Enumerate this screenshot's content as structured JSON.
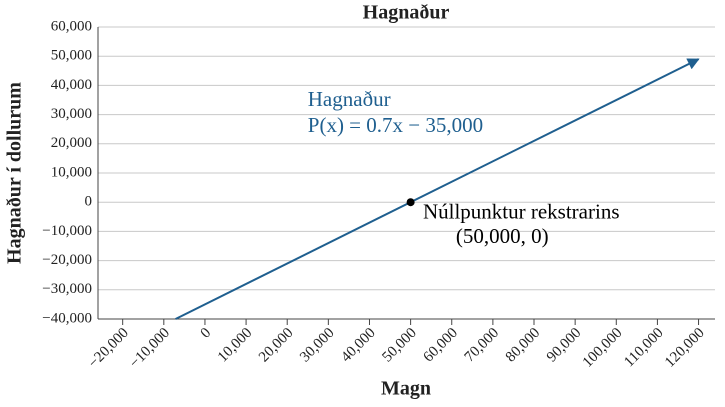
{
  "chart_data": {
    "type": "line",
    "title": "Hagnaður",
    "xlabel": "Magn",
    "ylabel": "Hagnaður í dollurum",
    "series": [
      {
        "color": "#1f5f8f",
        "x": [
          -7142.86,
          120000
        ],
        "values": [
          -40000,
          49000
        ]
      }
    ],
    "point": {
      "x": 50000,
      "y": 0,
      "color": "#000000"
    },
    "annotations": [
      {
        "text": "Hagnaður",
        "x": 25000,
        "y": 33000,
        "color": "#1f5f8f"
      },
      {
        "text": "P(x) = 0.7x − 35,000",
        "x": 25000,
        "y": 24000,
        "color": "#1f5f8f"
      },
      {
        "text": "Núllpunktur rekstrarins",
        "x": 53000,
        "y": -5500,
        "color": "#000000"
      },
      {
        "text": "(50,000, 0)",
        "x": 61000,
        "y": -14000,
        "color": "#000000"
      }
    ],
    "xlim": [
      -26000,
      124000
    ],
    "ylim": [
      -40000,
      60000
    ],
    "xticks": [
      {
        "value": -20000,
        "label": "−20,000"
      },
      {
        "value": -10000,
        "label": "−10,000"
      },
      0,
      {
        "value": 10000,
        "label": "10,000"
      },
      {
        "value": 20000,
        "label": "20,000"
      },
      {
        "value": 30000,
        "label": "30,000"
      },
      {
        "value": 40000,
        "label": "40,000"
      },
      {
        "value": 50000,
        "label": "50,000"
      },
      {
        "value": 60000,
        "label": "60,000"
      },
      {
        "value": 70000,
        "label": "70,000"
      },
      {
        "value": 80000,
        "label": "80,000"
      },
      {
        "value": 90000,
        "label": "90,000"
      },
      {
        "value": 100000,
        "label": "100,000"
      },
      {
        "value": 110000,
        "label": "110,000"
      },
      {
        "value": 120000,
        "label": "120,000"
      }
    ],
    "yticks": [
      {
        "value": -40000,
        "label": "−40,000"
      },
      {
        "value": -30000,
        "label": "−30,000"
      },
      {
        "value": -20000,
        "label": "−20,000"
      },
      {
        "value": -10000,
        "label": "−10,000"
      },
      0,
      {
        "value": 10000,
        "label": "10,000"
      },
      {
        "value": 20000,
        "label": "20,000"
      },
      {
        "value": 30000,
        "label": "30,000"
      },
      {
        "value": 40000,
        "label": "40,000"
      },
      {
        "value": 50000,
        "label": "50,000"
      },
      {
        "value": 60000,
        "label": "60,000"
      }
    ],
    "grid": true
  }
}
